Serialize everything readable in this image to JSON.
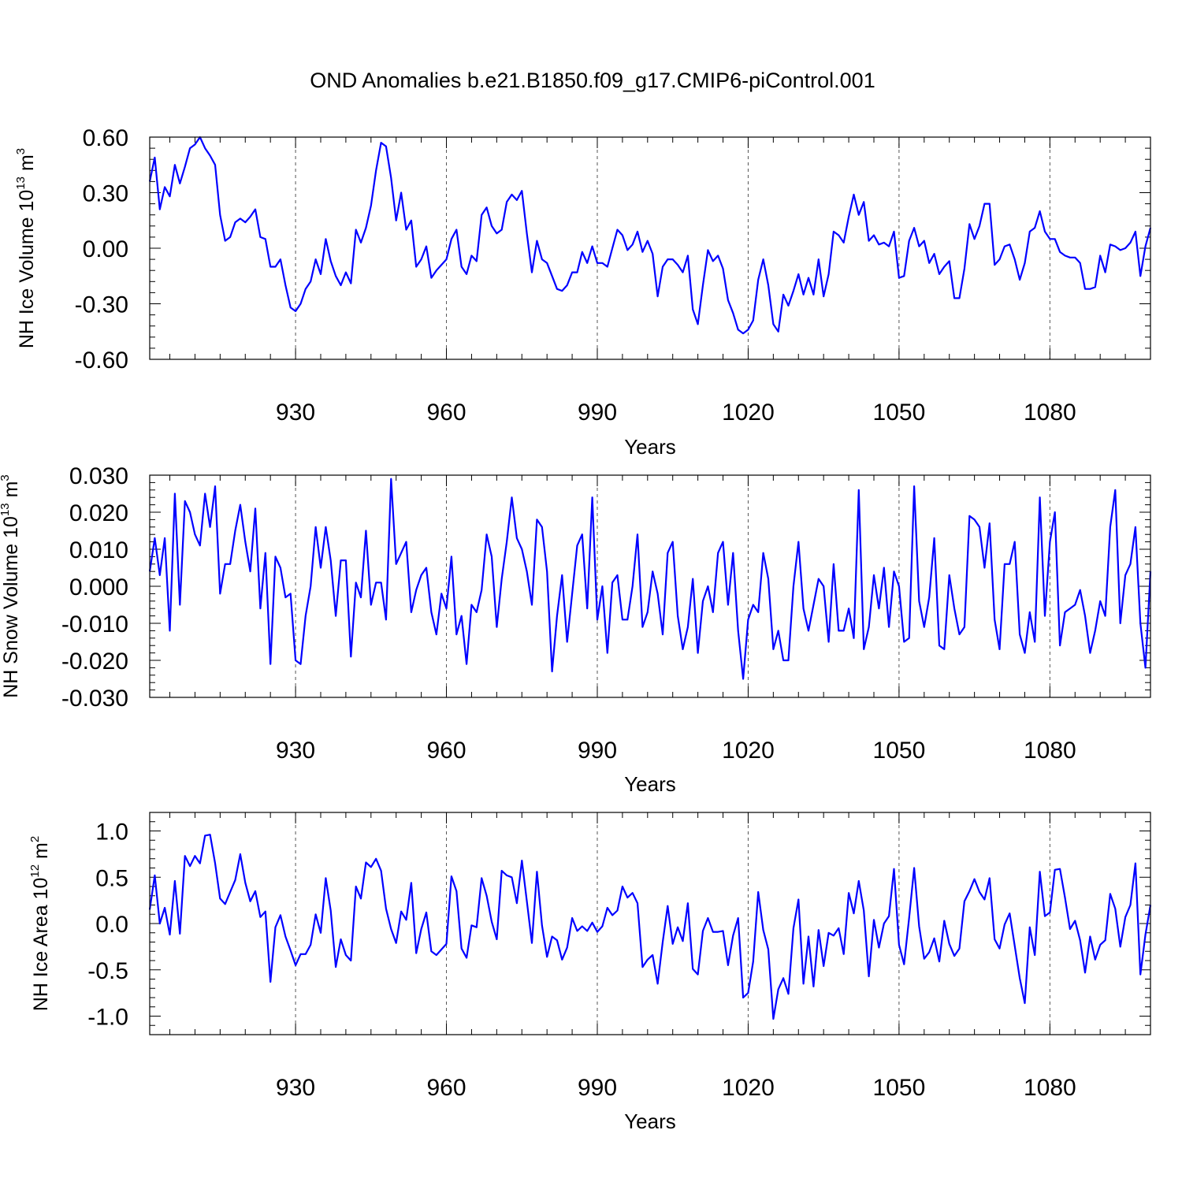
{
  "title": "OND Anomalies b.e21.B1850.f09_g17.CMIP6-piControl.001",
  "colors": {
    "line": "#0000ff",
    "frame": "#000000",
    "grid": "#555555"
  },
  "chart_data": [
    {
      "type": "line",
      "name": "ice-volume",
      "ylabel": "NH Ice Volume 10",
      "ylabel_exp": "13",
      "ylabel_unit": " m",
      "ylabel_unit_exp": "3",
      "xlabel": "Years",
      "xlim": [
        901,
        1100
      ],
      "ylim": [
        -0.6,
        0.6
      ],
      "yticks": [
        -0.6,
        -0.3,
        0.0,
        0.3,
        0.6
      ],
      "ytick_labels": [
        "-0.60",
        "-0.30",
        "0.00",
        "0.30",
        "0.60"
      ],
      "xticks": [
        930,
        960,
        990,
        1020,
        1050,
        1080
      ],
      "xtick_labels": [
        "930",
        "960",
        "990",
        "1020",
        "1050",
        "1080"
      ],
      "x_start": 901,
      "values": [
        0.36,
        0.49,
        0.21,
        0.33,
        0.28,
        0.45,
        0.35,
        0.44,
        0.54,
        0.56,
        0.6,
        0.54,
        0.5,
        0.45,
        0.18,
        0.04,
        0.06,
        0.14,
        0.16,
        0.14,
        0.17,
        0.21,
        0.06,
        0.05,
        -0.1,
        -0.1,
        -0.06,
        -0.2,
        -0.32,
        -0.34,
        -0.3,
        -0.22,
        -0.18,
        -0.06,
        -0.14,
        0.05,
        -0.07,
        -0.15,
        -0.2,
        -0.13,
        -0.19,
        0.1,
        0.03,
        0.11,
        0.23,
        0.42,
        0.57,
        0.55,
        0.38,
        0.15,
        0.3,
        0.1,
        0.15,
        -0.1,
        -0.06,
        0.01,
        -0.16,
        -0.12,
        -0.09,
        -0.06,
        0.05,
        0.1,
        -0.1,
        -0.14,
        -0.04,
        -0.07,
        0.18,
        0.22,
        0.12,
        0.08,
        0.1,
        0.25,
        0.29,
        0.26,
        0.31,
        0.08,
        -0.13,
        0.04,
        -0.06,
        -0.08,
        -0.15,
        -0.22,
        -0.23,
        -0.2,
        -0.13,
        -0.13,
        -0.02,
        -0.08,
        0.01,
        -0.08,
        -0.08,
        -0.1,
        0.0,
        0.1,
        0.07,
        -0.01,
        0.02,
        0.09,
        -0.02,
        0.04,
        -0.03,
        -0.26,
        -0.1,
        -0.06,
        -0.06,
        -0.09,
        -0.13,
        -0.04,
        -0.33,
        -0.41,
        -0.2,
        -0.01,
        -0.07,
        -0.04,
        -0.11,
        -0.28,
        -0.35,
        -0.44,
        -0.46,
        -0.44,
        -0.39,
        -0.17,
        -0.06,
        -0.2,
        -0.41,
        -0.45,
        -0.25,
        -0.31,
        -0.23,
        -0.14,
        -0.25,
        -0.16,
        -0.25,
        -0.06,
        -0.26,
        -0.14,
        0.09,
        0.07,
        0.03,
        0.17,
        0.29,
        0.18,
        0.25,
        0.04,
        0.07,
        0.02,
        0.03,
        0.01,
        0.09,
        -0.16,
        -0.15,
        0.04,
        0.11,
        0.01,
        0.04,
        -0.08,
        -0.03,
        -0.14,
        -0.1,
        -0.07,
        -0.27,
        -0.27,
        -0.11,
        0.13,
        0.05,
        0.12,
        0.24,
        0.24,
        -0.09,
        -0.06,
        0.01,
        0.02,
        -0.06,
        -0.17,
        -0.08,
        0.09,
        0.11,
        0.2,
        0.09,
        0.05,
        0.05,
        -0.02,
        -0.04,
        -0.05,
        -0.05,
        -0.08,
        -0.22,
        -0.22,
        -0.21,
        -0.04,
        -0.13,
        0.02,
        0.01,
        -0.01,
        0.0,
        0.03,
        0.09,
        -0.15,
        0.01,
        0.11
      ]
    },
    {
      "type": "line",
      "name": "snow-volume",
      "ylabel": "NH Snow Volume 10",
      "ylabel_exp": "13",
      "ylabel_unit": " m",
      "ylabel_unit_exp": "3",
      "xlabel": "Years",
      "xlim": [
        901,
        1100
      ],
      "ylim": [
        -0.03,
        0.03
      ],
      "yticks": [
        -0.03,
        -0.02,
        -0.01,
        0.0,
        0.01,
        0.02,
        0.03
      ],
      "ytick_labels": [
        "-0.030",
        "-0.020",
        "-0.010",
        "0.000",
        "0.010",
        "0.020",
        "0.030"
      ],
      "xticks": [
        930,
        960,
        990,
        1020,
        1050,
        1080
      ],
      "xtick_labels": [
        "930",
        "960",
        "990",
        "1020",
        "1050",
        "1080"
      ],
      "x_start": 901,
      "values": [
        0.004,
        0.013,
        0.003,
        0.013,
        -0.012,
        0.025,
        -0.005,
        0.023,
        0.02,
        0.014,
        0.011,
        0.025,
        0.016,
        0.027,
        -0.002,
        0.006,
        0.006,
        0.015,
        0.022,
        0.012,
        0.004,
        0.021,
        -0.006,
        0.009,
        -0.021,
        0.008,
        0.005,
        -0.003,
        -0.002,
        -0.02,
        -0.021,
        -0.008,
        0.0,
        0.016,
        0.005,
        0.016,
        0.007,
        -0.008,
        0.007,
        0.007,
        -0.019,
        0.001,
        -0.003,
        0.015,
        -0.005,
        0.001,
        0.001,
        -0.009,
        0.029,
        0.006,
        0.009,
        0.012,
        -0.007,
        -0.001,
        0.003,
        0.005,
        -0.007,
        -0.013,
        -0.002,
        -0.006,
        0.008,
        -0.013,
        -0.008,
        -0.021,
        -0.005,
        -0.007,
        -0.001,
        0.014,
        0.008,
        -0.011,
        0.002,
        0.012,
        0.024,
        0.013,
        0.01,
        0.004,
        -0.005,
        0.018,
        0.016,
        0.004,
        -0.023,
        -0.008,
        0.003,
        -0.015,
        -0.002,
        0.011,
        0.014,
        -0.006,
        0.024,
        -0.009,
        0.0,
        -0.018,
        0.001,
        0.003,
        -0.009,
        -0.009,
        0.0,
        0.014,
        -0.011,
        -0.007,
        0.004,
        -0.002,
        -0.013,
        0.009,
        0.012,
        -0.008,
        -0.017,
        -0.011,
        0.002,
        -0.018,
        -0.004,
        0.0,
        -0.007,
        0.009,
        0.012,
        -0.005,
        0.009,
        -0.012,
        -0.025,
        -0.009,
        -0.005,
        -0.007,
        0.009,
        0.002,
        -0.017,
        -0.012,
        -0.02,
        -0.02,
        0.0,
        0.012,
        -0.006,
        -0.012,
        -0.005,
        0.002,
        0.0,
        -0.015,
        0.006,
        -0.012,
        -0.012,
        -0.006,
        -0.014,
        0.026,
        -0.017,
        -0.011,
        0.003,
        -0.006,
        0.005,
        -0.011,
        0.004,
        0.0,
        -0.015,
        -0.014,
        0.027,
        -0.004,
        -0.011,
        -0.003,
        0.013,
        -0.016,
        -0.017,
        0.003,
        -0.006,
        -0.013,
        -0.011,
        0.019,
        0.018,
        0.016,
        0.005,
        0.017,
        -0.009,
        -0.017,
        0.006,
        0.006,
        0.012,
        -0.013,
        -0.018,
        -0.007,
        -0.015,
        0.024,
        -0.008,
        0.012,
        0.02,
        -0.016,
        -0.007,
        -0.006,
        -0.005,
        -0.001,
        -0.008,
        -0.018,
        -0.012,
        -0.004,
        -0.008,
        0.016,
        0.026,
        -0.01,
        0.003,
        0.006,
        0.016,
        -0.01,
        -0.022,
        0.004
      ]
    },
    {
      "type": "line",
      "name": "ice-area",
      "ylabel": "NH Ice Area 10",
      "ylabel_exp": "12",
      "ylabel_unit": " m",
      "ylabel_unit_exp": "2",
      "xlabel": "Years",
      "xlim": [
        901,
        1100
      ],
      "ylim": [
        -1.2,
        1.2
      ],
      "yticks": [
        -1.0,
        -0.5,
        0.0,
        0.5,
        1.0
      ],
      "ytick_labels": [
        "-1.0",
        "-0.5",
        "0.0",
        "0.5",
        "1.0"
      ],
      "xticks": [
        930,
        960,
        990,
        1020,
        1050,
        1080
      ],
      "xtick_labels": [
        "930",
        "960",
        "990",
        "1020",
        "1050",
        "1080"
      ],
      "x_start": 901,
      "values": [
        0.15,
        0.52,
        0.0,
        0.17,
        -0.12,
        0.46,
        -0.11,
        0.73,
        0.62,
        0.73,
        0.65,
        0.95,
        0.96,
        0.65,
        0.27,
        0.21,
        0.34,
        0.47,
        0.75,
        0.44,
        0.24,
        0.35,
        0.07,
        0.13,
        -0.63,
        -0.04,
        0.09,
        -0.14,
        -0.29,
        -0.45,
        -0.33,
        -0.33,
        -0.23,
        0.1,
        -0.1,
        0.49,
        0.14,
        -0.47,
        -0.17,
        -0.34,
        -0.4,
        0.4,
        0.27,
        0.66,
        0.61,
        0.7,
        0.57,
        0.16,
        -0.06,
        -0.21,
        0.13,
        0.04,
        0.44,
        -0.32,
        -0.06,
        0.12,
        -0.3,
        -0.34,
        -0.28,
        -0.22,
        0.51,
        0.35,
        -0.27,
        -0.37,
        -0.02,
        -0.04,
        0.49,
        0.3,
        0.02,
        -0.17,
        0.57,
        0.52,
        0.5,
        0.22,
        0.68,
        0.24,
        -0.21,
        0.56,
        -0.02,
        -0.36,
        -0.14,
        -0.18,
        -0.39,
        -0.26,
        0.06,
        -0.08,
        -0.03,
        -0.08,
        0.01,
        -0.09,
        -0.03,
        0.17,
        0.09,
        0.14,
        0.4,
        0.28,
        0.33,
        0.22,
        -0.47,
        -0.39,
        -0.34,
        -0.65,
        -0.2,
        0.19,
        -0.22,
        -0.04,
        -0.19,
        0.22,
        -0.49,
        -0.55,
        -0.08,
        0.06,
        -0.09,
        -0.09,
        -0.08,
        -0.45,
        -0.13,
        0.06,
        -0.8,
        -0.75,
        -0.41,
        0.34,
        -0.07,
        -0.28,
        -1.03,
        -0.71,
        -0.59,
        -0.76,
        -0.05,
        0.26,
        -0.65,
        -0.14,
        -0.68,
        -0.07,
        -0.46,
        -0.1,
        -0.13,
        -0.05,
        -0.33,
        0.33,
        0.11,
        0.46,
        0.14,
        -0.57,
        0.04,
        -0.26,
        0.0,
        0.08,
        0.59,
        -0.23,
        -0.44,
        0.06,
        0.6,
        -0.03,
        -0.38,
        -0.31,
        -0.16,
        -0.41,
        0.03,
        -0.22,
        -0.35,
        -0.27,
        0.24,
        0.35,
        0.48,
        0.34,
        0.26,
        0.49,
        -0.17,
        -0.27,
        -0.01,
        0.11,
        -0.24,
        -0.59,
        -0.86,
        -0.04,
        -0.34,
        0.56,
        0.08,
        0.12,
        0.58,
        0.59,
        0.28,
        -0.06,
        0.03,
        -0.18,
        -0.53,
        -0.14,
        -0.39,
        -0.23,
        -0.18,
        0.32,
        0.16,
        -0.25,
        0.07,
        0.2,
        0.65,
        -0.55,
        -0.12,
        0.2
      ]
    }
  ]
}
